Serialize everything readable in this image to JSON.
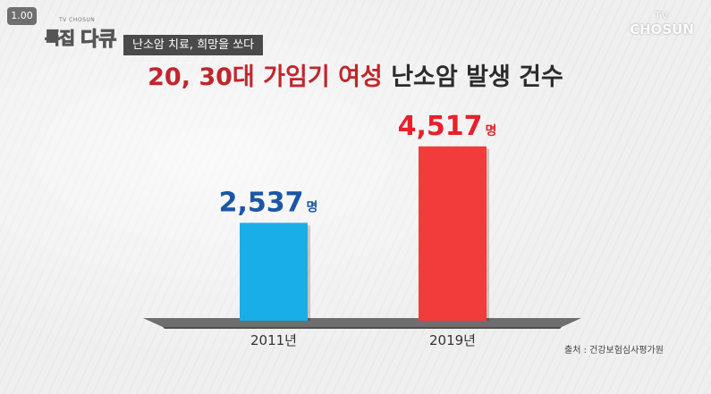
{
  "overlay": {
    "playback_speed": "1.00",
    "show_logo_small": "TV CHOSUN",
    "show_logo_brand_1": "특집",
    "show_logo_brand_2": "다큐",
    "program_tag": "난소암 치료, 희망을 쏘다",
    "channel_logo_line1": "TV",
    "channel_logo_line2": "CHOSUN"
  },
  "title": {
    "part_red": "20, 30대 가임기 여성",
    "part_dark": "난소암 발생 건수"
  },
  "source": "출처 : 건강보험심사평가원",
  "colors": {
    "bar_2011": "#1aaee8",
    "bar_2019": "#f23b3b",
    "label_2011": "#1a56a8",
    "label_2019": "#e8202a",
    "floor": "#6e6e6e"
  },
  "chart_data": {
    "type": "bar",
    "title": "20, 30대 가임기 여성 난소암 발생 건수",
    "categories": [
      "2011년",
      "2019년"
    ],
    "values": [
      2537,
      4517
    ],
    "value_labels": [
      "2,537",
      "4,517"
    ],
    "unit": "명",
    "ylim": [
      0,
      5000
    ],
    "grid": false,
    "legend": "none"
  }
}
